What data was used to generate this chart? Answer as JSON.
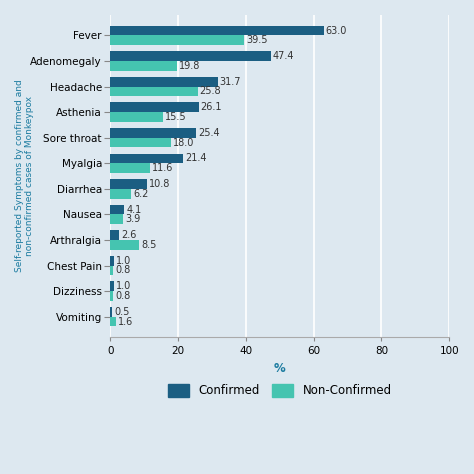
{
  "categories": [
    "Fever",
    "Adenomegaly",
    "Headache",
    "Asthenia",
    "Sore throat",
    "Myalgia",
    "Diarrhea",
    "Nausea",
    "Arthralgia",
    "Chest Pain",
    "Dizziness",
    "Vomiting"
  ],
  "confirmed": [
    63.0,
    47.4,
    31.7,
    26.1,
    25.4,
    21.4,
    10.8,
    4.1,
    2.6,
    1.0,
    1.0,
    0.5
  ],
  "non_confirmed": [
    39.5,
    19.8,
    25.8,
    15.5,
    18.0,
    11.6,
    6.2,
    3.9,
    8.5,
    0.8,
    0.8,
    1.6
  ],
  "confirmed_color": "#1b5e82",
  "non_confirmed_color": "#45c4b0",
  "background_color": "#dde8f0",
  "plot_bg_color": "#dde8f0",
  "ylabel": "Self-reported Symptoms by confirmed and\nnon-confirmed cases of Monkeypox",
  "xlabel": "%",
  "xlim": [
    0,
    100
  ],
  "xticks": [
    0,
    20,
    40,
    60,
    80,
    100
  ],
  "bar_height": 0.38,
  "label_fontsize": 7.0,
  "tick_fontsize": 7.5,
  "ylabel_fontsize": 6.5,
  "legend_confirmed": "Confirmed",
  "legend_non_confirmed": "Non-Confirmed"
}
